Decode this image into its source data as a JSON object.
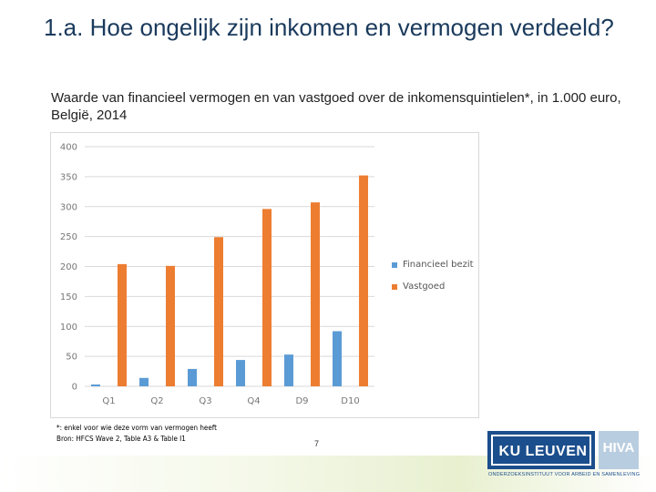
{
  "slide": {
    "title": "1.a. Hoe ongelijk zijn inkomen en vermogen verdeeld?",
    "subtitle": "Waarde van financieel vermogen en van vastgoed over de inkomensquintielen*, in 1.000 euro, België, 2014",
    "footnote_1": "*: enkel voor wie deze vorm van vermogen heeft",
    "footnote_2": "Bron: HFCS Wave 2, Table A3 & Table I1",
    "page_number": "7"
  },
  "logos": {
    "ku_leuven": "KU LEUVEN",
    "hiva": "HIVA",
    "caption": "ONDERZOEKSINSTITUUT VOOR ARBEID EN SAMENLEVING"
  },
  "colors": {
    "financieel": "#5b9bd5",
    "vastgoed": "#ed7d31",
    "title": "#1a3a5c",
    "ku_blue": "#1b4e8c"
  },
  "chart_data": {
    "type": "bar",
    "categories": [
      "Q1",
      "Q2",
      "Q3",
      "Q4",
      "D9",
      "D10"
    ],
    "series": [
      {
        "name": "Financieel bezit",
        "values": [
          3,
          14,
          29,
          44,
          53,
          92
        ]
      },
      {
        "name": "Vastgoed",
        "values": [
          204,
          201,
          249,
          296,
          307,
          352
        ]
      }
    ],
    "yticks": [
      "0",
      "50",
      "100",
      "150",
      "200",
      "250",
      "300",
      "350",
      "400"
    ],
    "ylim": [
      0,
      400
    ],
    "grid": true,
    "legend": "right"
  }
}
